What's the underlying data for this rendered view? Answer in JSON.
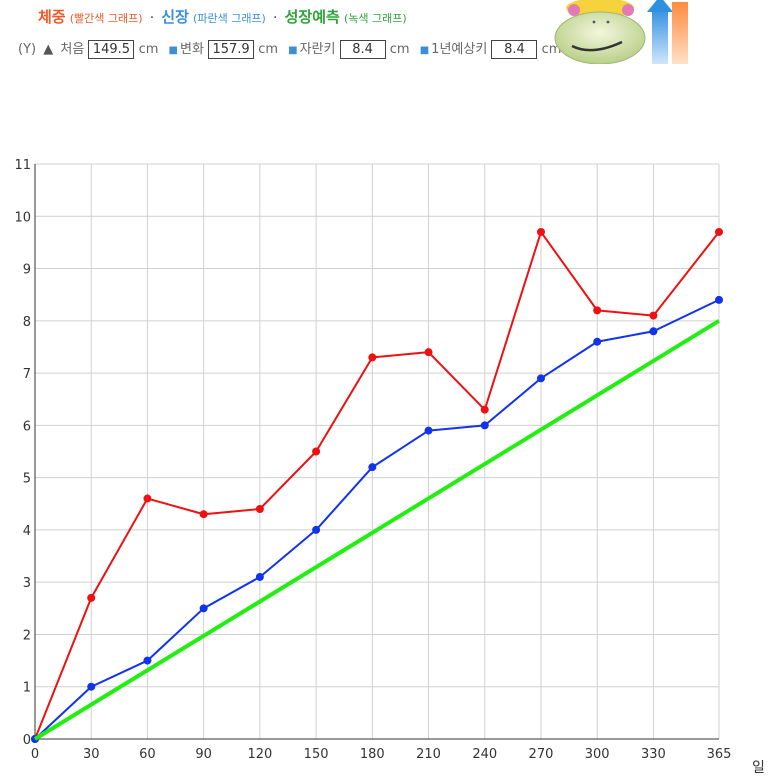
{
  "legend": {
    "weight_label": "체중",
    "weight_note": "(빨간색 그래프)",
    "sep1": "·",
    "height_label": "신장",
    "height_note": "(파란색 그래프)",
    "sep2": "·",
    "prediction_label": "성장예측",
    "prediction_note": "(녹색 그래프)"
  },
  "readout": {
    "axis_label": "(Y)",
    "start_label": "처음",
    "start_value": "149.5",
    "unit": "cm",
    "change_label": "변화",
    "change_value": "157.9",
    "growth_label": "자란키",
    "growth_value": "8.4",
    "annual_label": "1년예상키",
    "annual_value": "8.4"
  },
  "colors": {
    "weight": "#ee1111",
    "height": "#1133ee",
    "prediction": "#22ee11",
    "grid": "#d0d0d0"
  },
  "chart_data": {
    "type": "line",
    "x": [
      0,
      30,
      60,
      90,
      120,
      150,
      180,
      210,
      240,
      270,
      300,
      330,
      365
    ],
    "xlabel": "일",
    "ylabel": "",
    "xlim": [
      0,
      365
    ],
    "ylim": [
      0,
      11
    ],
    "xticks": [
      0,
      30,
      60,
      90,
      120,
      150,
      180,
      210,
      240,
      270,
      300,
      330,
      365
    ],
    "yticks": [
      0,
      1,
      2,
      3,
      4,
      5,
      6,
      7,
      8,
      9,
      10,
      11
    ],
    "grid": true,
    "series": [
      {
        "color": "#ee1111",
        "values": [
          0,
          2.7,
          4.6,
          4.3,
          4.4,
          5.5,
          7.3,
          7.4,
          6.3,
          9.7,
          8.2,
          8.1,
          9.7
        ]
      },
      {
        "color": "#1133ee",
        "values": [
          0,
          1.0,
          1.5,
          2.5,
          3.1,
          4.0,
          5.2,
          5.9,
          6.0,
          6.9,
          7.6,
          7.8,
          8.4
        ]
      },
      {
        "color": "#22ee11",
        "x": [
          0,
          365
        ],
        "values": [
          0,
          8.0
        ]
      }
    ]
  }
}
